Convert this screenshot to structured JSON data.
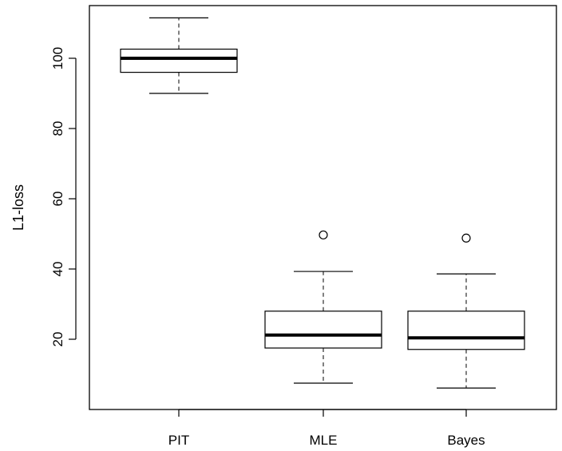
{
  "chart_data": {
    "type": "box",
    "title": "",
    "xlabel": "",
    "ylabel": "L1-loss",
    "ylim": [
      0,
      115
    ],
    "yticks": [
      20,
      40,
      60,
      80,
      100
    ],
    "ytick_labels": [
      "20",
      "40",
      "60",
      "80",
      "100"
    ],
    "categories": [
      "PIT",
      "MLE",
      "Bayes"
    ],
    "boxes": [
      {
        "name": "PIT",
        "whisker_low": 90.0,
        "q1": 96.0,
        "median": 100.0,
        "q3": 102.6,
        "whisker_high": 111.5,
        "outliers": []
      },
      {
        "name": "MLE",
        "whisker_low": 7.5,
        "q1": 17.5,
        "median": 21.2,
        "q3": 28.0,
        "whisker_high": 39.3,
        "outliers": [
          49.7
        ]
      },
      {
        "name": "Bayes",
        "whisker_low": 6.1,
        "q1": 17.1,
        "median": 20.4,
        "q3": 28.0,
        "whisker_high": 38.6,
        "outliers": [
          48.8
        ]
      }
    ],
    "grid": false,
    "legend": "none"
  }
}
